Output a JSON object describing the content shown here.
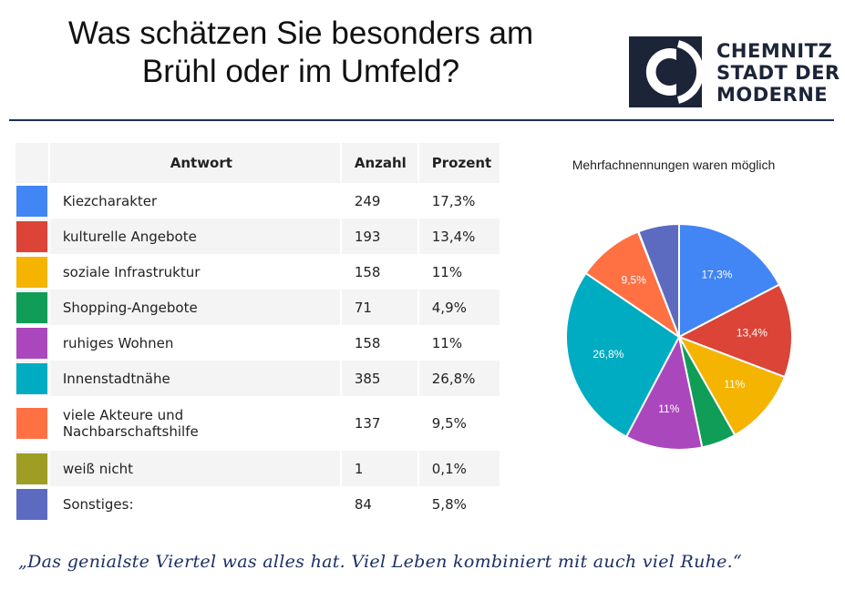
{
  "title": {
    "line1": "Was schätzen Sie besonders am",
    "line2": "Brühl oder im Umfeld?"
  },
  "logo": {
    "line1": "CHEMNITZ",
    "line2": "STADT DER",
    "line3": "MODERNE",
    "color": "#1c2538"
  },
  "table": {
    "headers": {
      "answer": "Antwort",
      "count": "Anzahl",
      "percent": "Prozent"
    },
    "rows": [
      {
        "answer": "Kiezcharakter",
        "count": "249",
        "percent": "17,3%",
        "color": "#4285f4"
      },
      {
        "answer": "kulturelle Angebote",
        "count": "193",
        "percent": "13,4%",
        "color": "#db4437"
      },
      {
        "answer": "soziale Infrastruktur",
        "count": "158",
        "percent": "11%",
        "color": "#f4b400"
      },
      {
        "answer": "Shopping-Angebote",
        "count": "71",
        "percent": "4,9%",
        "color": "#0f9d58"
      },
      {
        "answer": "ruhiges Wohnen",
        "count": "158",
        "percent": "11%",
        "color": "#ab47bc"
      },
      {
        "answer": "Innenstadtnähe",
        "count": "385",
        "percent": "26,8%",
        "color": "#00acc1"
      },
      {
        "answer": "viele Akteure und\nNachbarschaftshilfe",
        "count": "137",
        "percent": "9,5%",
        "color": "#ff7043"
      },
      {
        "answer": "weiß nicht",
        "count": "1",
        "percent": "0,1%",
        "color": "#9e9d24"
      },
      {
        "answer": "Sonstiges:",
        "count": "84",
        "percent": "5,8%",
        "color": "#5c6bc0"
      }
    ]
  },
  "pie": {
    "subtitle": "Mehrfachnennungen waren möglich"
  },
  "chart_data": {
    "type": "pie",
    "title": "Was schätzen Sie besonders am Brühl oder im Umfeld?",
    "subtitle": "Mehrfachnennungen waren möglich",
    "categories": [
      "Kiezcharakter",
      "kulturelle Angebote",
      "soziale Infrastruktur",
      "Shopping-Angebote",
      "ruhiges Wohnen",
      "Innenstadtnähe",
      "viele Akteure und Nachbarschaftshilfe",
      "weiß nicht",
      "Sonstiges:"
    ],
    "values": [
      249,
      193,
      158,
      71,
      158,
      385,
      137,
      1,
      84
    ],
    "slice_labels": [
      "17,3%",
      "13,4%",
      "11%",
      "",
      "11%",
      "26,8%",
      "9,5%",
      "",
      ""
    ],
    "colors": [
      "#4285f4",
      "#db4437",
      "#f4b400",
      "#0f9d58",
      "#ab47bc",
      "#00acc1",
      "#ff7043",
      "#9e9d24",
      "#5c6bc0"
    ],
    "legend": "none"
  },
  "quote": "„Das genialste Viertel was alles hat. Viel Leben kombiniert mit auch viel Ruhe.“"
}
